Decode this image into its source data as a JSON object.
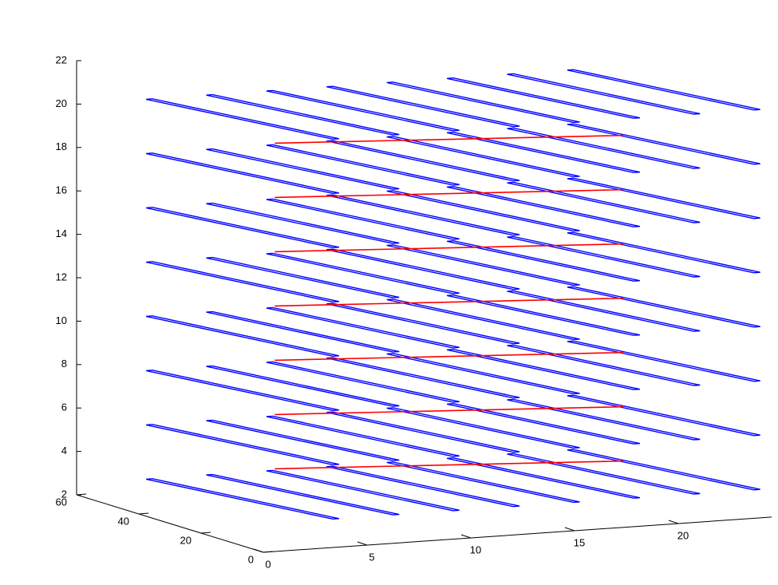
{
  "chart_data": {
    "type": "line3d",
    "xlim": [
      0,
      24.5
    ],
    "ylim": [
      0,
      60
    ],
    "zlim": [
      2,
      22
    ],
    "xticks": [
      0,
      5,
      10,
      15,
      20
    ],
    "yticks": [
      0,
      20,
      40,
      60
    ],
    "zticks": [
      2,
      4,
      6,
      8,
      10,
      12,
      14,
      16,
      18,
      20,
      22
    ],
    "color": "#0000ff",
    "layers": [
      2.5,
      5,
      7.5,
      10,
      12.5,
      15,
      17.5,
      20
    ],
    "strip_offsets": [
      3.35,
      6.25,
      9.15,
      12.05,
      14.95,
      17.85,
      20.75,
      23.65
    ],
    "strip": {
      "x": [
        0,
        2.25,
        2.55,
        0.3,
        0
      ],
      "y": [
        60,
        15,
        15,
        60,
        60
      ]
    },
    "link_color": "#ff0000",
    "link_layers": [
      5,
      7.5,
      10,
      12.5,
      15,
      17.5,
      20
    ],
    "link": {
      "x": [
        2.8,
        17.5
      ],
      "y": [
        15,
        1
      ]
    }
  }
}
